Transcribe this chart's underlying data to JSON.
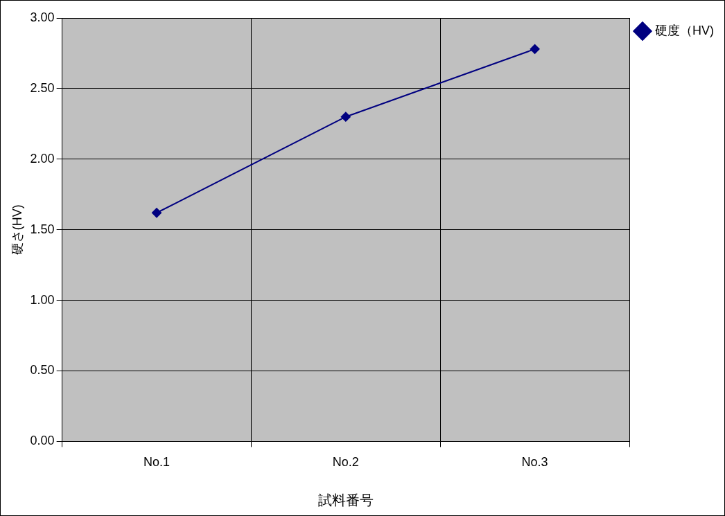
{
  "chart_data": {
    "type": "line",
    "xlabel": "試料番号",
    "ylabel": "硬さ(HV)",
    "categories": [
      "No.1",
      "No.2",
      "No.3"
    ],
    "series": [
      {
        "name": "硬度（HV)",
        "color": "#000080",
        "values": [
          1.62,
          2.3,
          2.78
        ]
      }
    ],
    "ylim": [
      0,
      3
    ],
    "yticks": [
      {
        "value": 0,
        "label": "0.00"
      },
      {
        "value": 0.5,
        "label": "0.50"
      },
      {
        "value": 1,
        "label": "1.00"
      },
      {
        "value": 1.5,
        "label": "1.50"
      },
      {
        "value": 2,
        "label": "2.00"
      },
      {
        "value": 2.5,
        "label": "2.50"
      },
      {
        "value": 3,
        "label": "3.00"
      }
    ],
    "grid": true,
    "legend": "top right",
    "marker": "diamond",
    "line_style": "solid"
  }
}
